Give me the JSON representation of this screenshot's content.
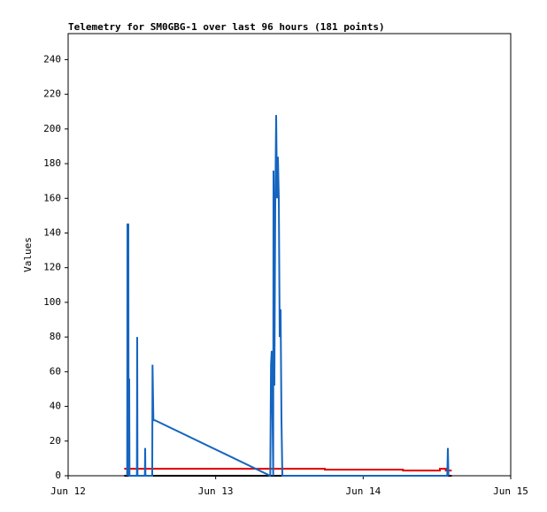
{
  "chart_data": {
    "type": "line",
    "title": "Telemetry for SM0GBG-1 over last 96 hours (181 points)",
    "y_label": "Values",
    "xlim": [
      12,
      15
    ],
    "xticks": [
      {
        "value": 12,
        "label": "Jun 12"
      },
      {
        "value": 13,
        "label": "Jun 13"
      },
      {
        "value": 14,
        "label": "Jun 14"
      },
      {
        "value": 15,
        "label": "Jun 15"
      }
    ],
    "ylim": [
      0,
      255
    ],
    "yticks": [
      0,
      20,
      40,
      60,
      80,
      100,
      120,
      140,
      160,
      180,
      200,
      220,
      240
    ],
    "series": [
      {
        "color": "#000000",
        "x": [
          12.38,
          14.6
        ],
        "values": [
          0,
          0
        ]
      },
      {
        "color": "#e00000",
        "x": [
          12.38,
          13.74,
          13.74,
          14.27,
          14.27,
          14.52,
          14.52,
          14.56,
          14.56,
          14.6
        ],
        "values": [
          4,
          4,
          3.5,
          3.5,
          3,
          3,
          4,
          4,
          3,
          3
        ]
      },
      {
        "color": "#1565c0",
        "x": [
          12.4,
          12.402,
          12.408,
          12.41,
          12.414,
          12.416,
          12.466,
          12.468,
          12.47,
          12.52,
          12.522,
          12.524,
          12.57,
          12.572,
          12.578,
          12.588,
          13.37,
          13.375,
          13.38,
          13.39,
          13.392,
          13.398,
          13.404,
          13.41,
          13.416,
          13.422,
          13.428,
          13.434,
          13.44,
          13.446,
          13.452,
          13.458,
          13.464,
          13.47,
          13.472,
          14.57,
          14.574,
          14.578
        ],
        "values": [
          0,
          145,
          145,
          0,
          56,
          0,
          0,
          80,
          0,
          0,
          16,
          0,
          0,
          64,
          32,
          32,
          0,
          64,
          72,
          0,
          176,
          52,
          157,
          208,
          160,
          184,
          160,
          80,
          96,
          32,
          0,
          0,
          0,
          0,
          0,
          0,
          16,
          0
        ]
      }
    ]
  }
}
